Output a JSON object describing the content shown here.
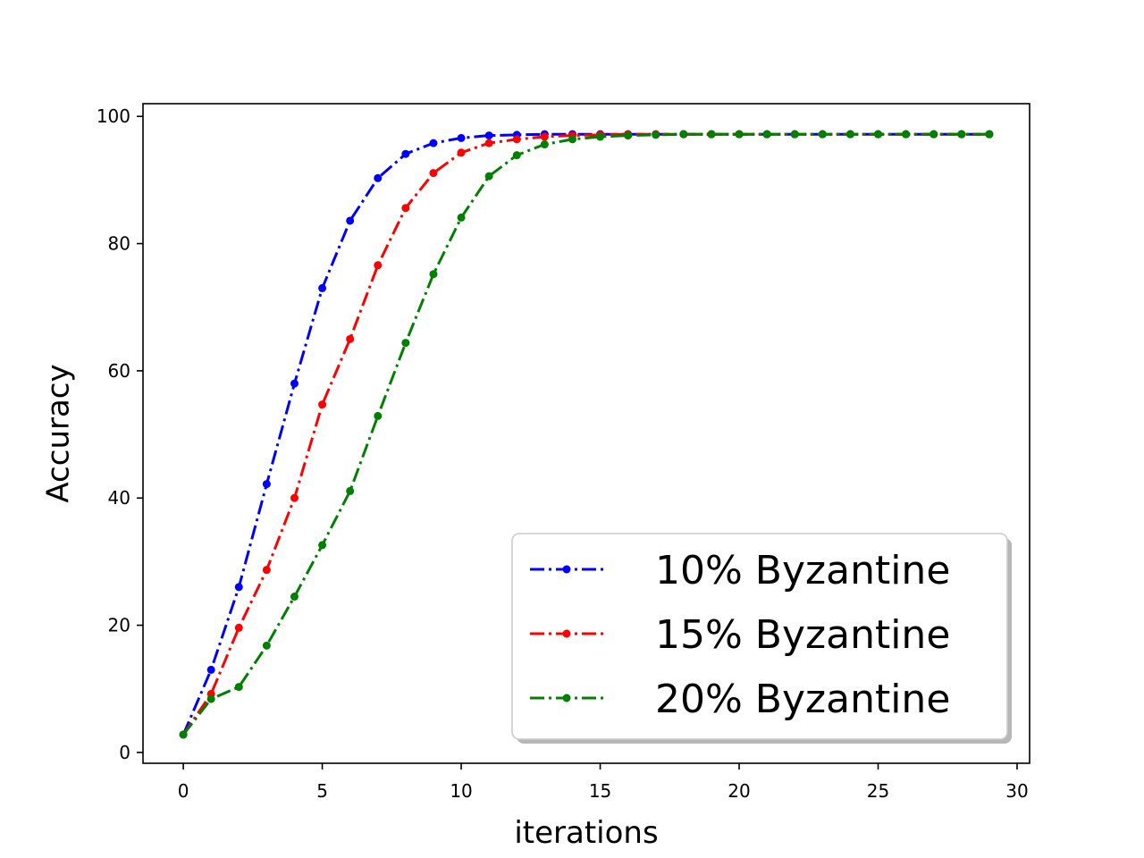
{
  "chart_data": {
    "type": "line",
    "title": "",
    "xlabel": "iterations",
    "ylabel": "Accuracy",
    "xlim": [
      -1.45,
      30.45
    ],
    "ylim": [
      -1.7,
      102.0
    ],
    "xticks": [
      0,
      5,
      10,
      15,
      20,
      25,
      30
    ],
    "yticks": [
      0,
      20,
      40,
      60,
      80,
      100
    ],
    "grid": false,
    "legend_position": "lower-right",
    "x": [
      0,
      1,
      2,
      3,
      4,
      5,
      6,
      7,
      8,
      9,
      10,
      11,
      12,
      13,
      14,
      15,
      16,
      17,
      18,
      19,
      20,
      21,
      22,
      23,
      24,
      25,
      26,
      27,
      28,
      29
    ],
    "series": [
      {
        "name": "10% Byzantine",
        "color": "#0000ff",
        "values": [
          2.8,
          13.0,
          26.0,
          42.2,
          58.0,
          73.0,
          83.6,
          90.3,
          94.1,
          95.8,
          96.6,
          97.0,
          97.1,
          97.2,
          97.2,
          97.2,
          97.2,
          97.2,
          97.2,
          97.2,
          97.2,
          97.2,
          97.2,
          97.2,
          97.2,
          97.2,
          97.2,
          97.2,
          97.2,
          97.2
        ]
      },
      {
        "name": "15% Byzantine",
        "color": "#ff0000",
        "values": [
          2.8,
          9.2,
          19.6,
          28.7,
          40.0,
          54.7,
          65.0,
          76.6,
          85.6,
          91.1,
          94.3,
          95.8,
          96.4,
          96.8,
          97.0,
          97.1,
          97.2,
          97.2,
          97.2,
          97.2,
          97.2,
          97.2,
          97.2,
          97.2,
          97.2,
          97.2,
          97.2,
          97.2,
          97.2,
          97.2
        ]
      },
      {
        "name": "20% Byzantine",
        "color": "#008000",
        "values": [
          2.8,
          8.4,
          10.3,
          16.8,
          24.5,
          32.6,
          41.1,
          52.9,
          64.4,
          75.2,
          84.1,
          90.6,
          93.9,
          95.6,
          96.4,
          96.8,
          97.0,
          97.1,
          97.2,
          97.2,
          97.2,
          97.2,
          97.2,
          97.2,
          97.2,
          97.2,
          97.2,
          97.2,
          97.2,
          97.2
        ]
      }
    ]
  }
}
